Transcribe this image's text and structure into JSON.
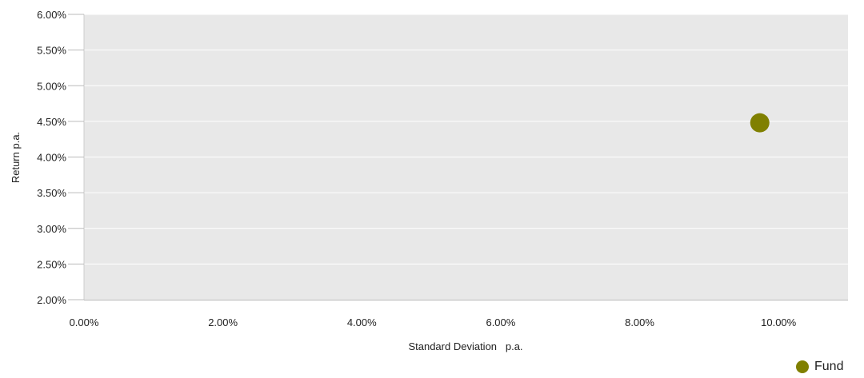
{
  "chart_data": {
    "type": "scatter",
    "xlabel": "Standard Deviation   p.a.",
    "ylabel": "Return p.a.",
    "xlim": [
      0,
      11
    ],
    "ylim": [
      2,
      6
    ],
    "x_ticks": [
      "0.00%",
      "2.00%",
      "4.00%",
      "6.00%",
      "8.00%",
      "10.00%"
    ],
    "x_tick_values": [
      0,
      2,
      4,
      6,
      8,
      10
    ],
    "y_ticks": [
      "6.00%",
      "5.50%",
      "5.00%",
      "4.50%",
      "4.00%",
      "3.50%",
      "3.00%",
      "2.50%",
      "2.00%"
    ],
    "y_tick_values": [
      6,
      5.5,
      5,
      4.5,
      4,
      3.5,
      3,
      2.5,
      2
    ],
    "grid": true,
    "legend_position": "bottom-right",
    "series": [
      {
        "name": "Fund",
        "color": "#808000",
        "points": [
          {
            "x": 9.73,
            "y": 4.48
          }
        ]
      }
    ]
  },
  "colors": {
    "plot_background": "#e8e8e8",
    "gridline": "#ffffff",
    "fund": "#808000"
  }
}
